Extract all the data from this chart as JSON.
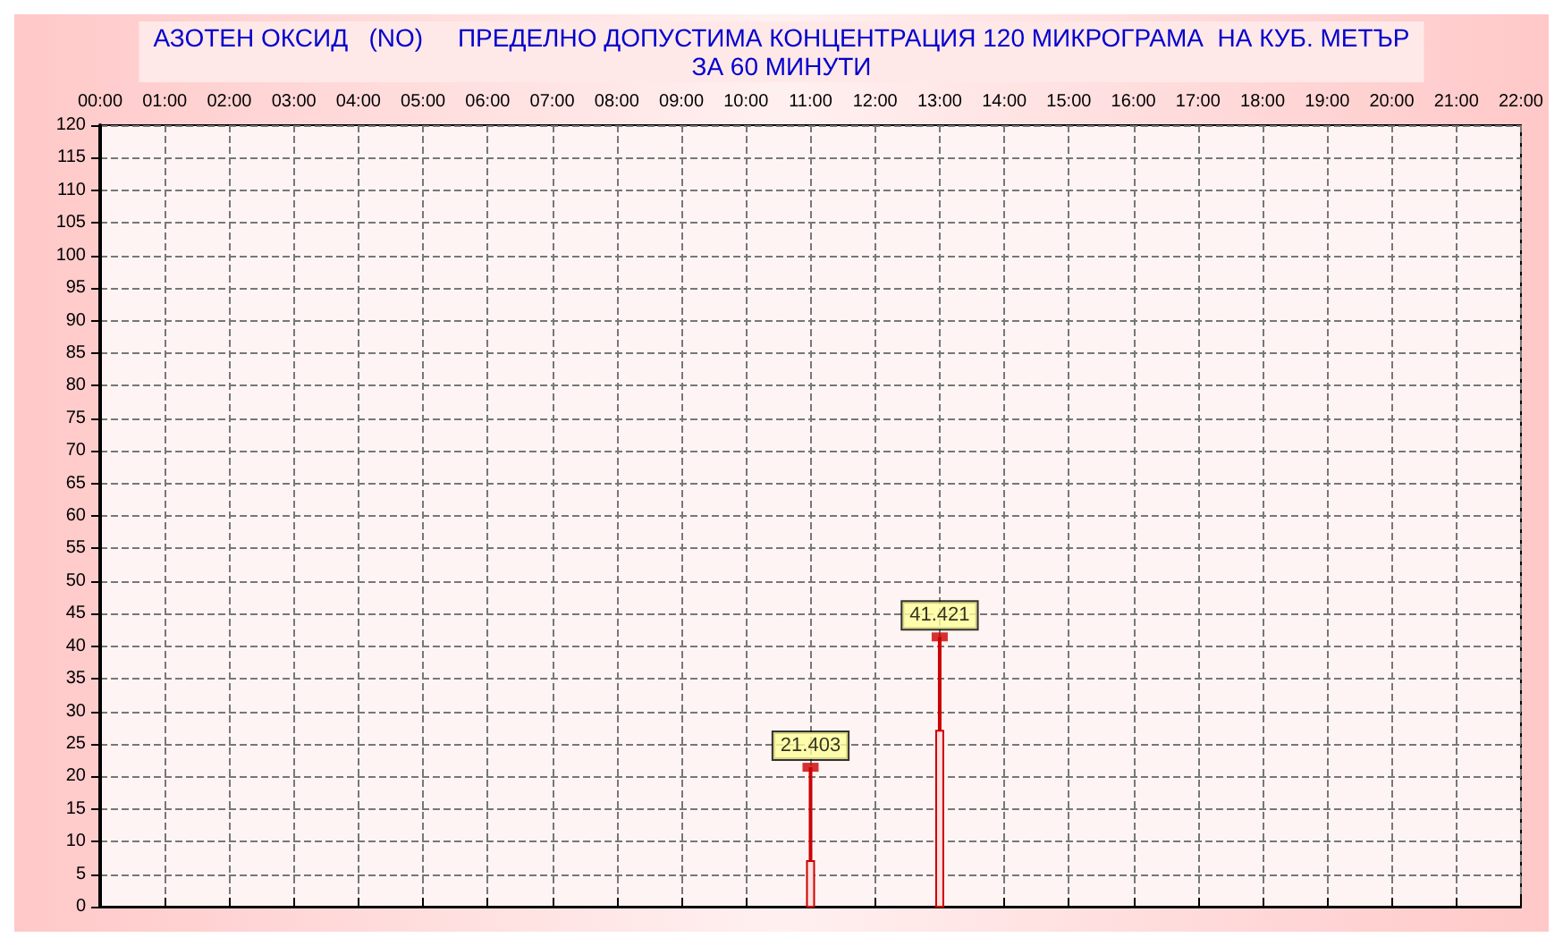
{
  "chart_data": {
    "type": "bar",
    "title": "АЗОТЕН ОКСИД   (NO)     ПРЕДЕЛНО ДОПУСТИМА КОНЦЕНТРАЦИЯ 120 МИКРОГРАМА  НА КУБ. МЕТЪР",
    "subtitle": "ЗА 60 МИНУТИ",
    "categories": [
      "00:00",
      "01:00",
      "02:00",
      "03:00",
      "04:00",
      "05:00",
      "06:00",
      "07:00",
      "08:00",
      "09:00",
      "10:00",
      "11:00",
      "12:00",
      "13:00",
      "14:00",
      "15:00",
      "16:00",
      "17:00",
      "18:00",
      "19:00",
      "20:00",
      "21:00",
      "22:00"
    ],
    "ylim": [
      0,
      120
    ],
    "yticks": [
      0,
      5,
      10,
      15,
      20,
      25,
      30,
      35,
      40,
      45,
      50,
      55,
      60,
      65,
      70,
      75,
      80,
      85,
      90,
      95,
      100,
      105,
      110,
      115,
      120
    ],
    "grid": true,
    "series": [
      {
        "type": "lollipop",
        "color": "#cc0000",
        "values": [
          null,
          null,
          null,
          null,
          null,
          null,
          null,
          null,
          null,
          null,
          null,
          21.403,
          null,
          41.421,
          null,
          null,
          null,
          null,
          null,
          null,
          null,
          null,
          null
        ],
        "value_labels": [
          null,
          null,
          null,
          null,
          null,
          null,
          null,
          null,
          null,
          null,
          null,
          "21.403",
          null,
          "41.421",
          null,
          null,
          null,
          null,
          null,
          null,
          null,
          null,
          null
        ]
      },
      {
        "color": "#cc0000",
        "values": [
          null,
          null,
          null,
          null,
          null,
          null,
          null,
          null,
          null,
          null,
          null,
          7,
          null,
          27,
          null,
          null,
          null,
          null,
          null,
          null,
          null,
          null,
          null
        ]
      }
    ]
  }
}
